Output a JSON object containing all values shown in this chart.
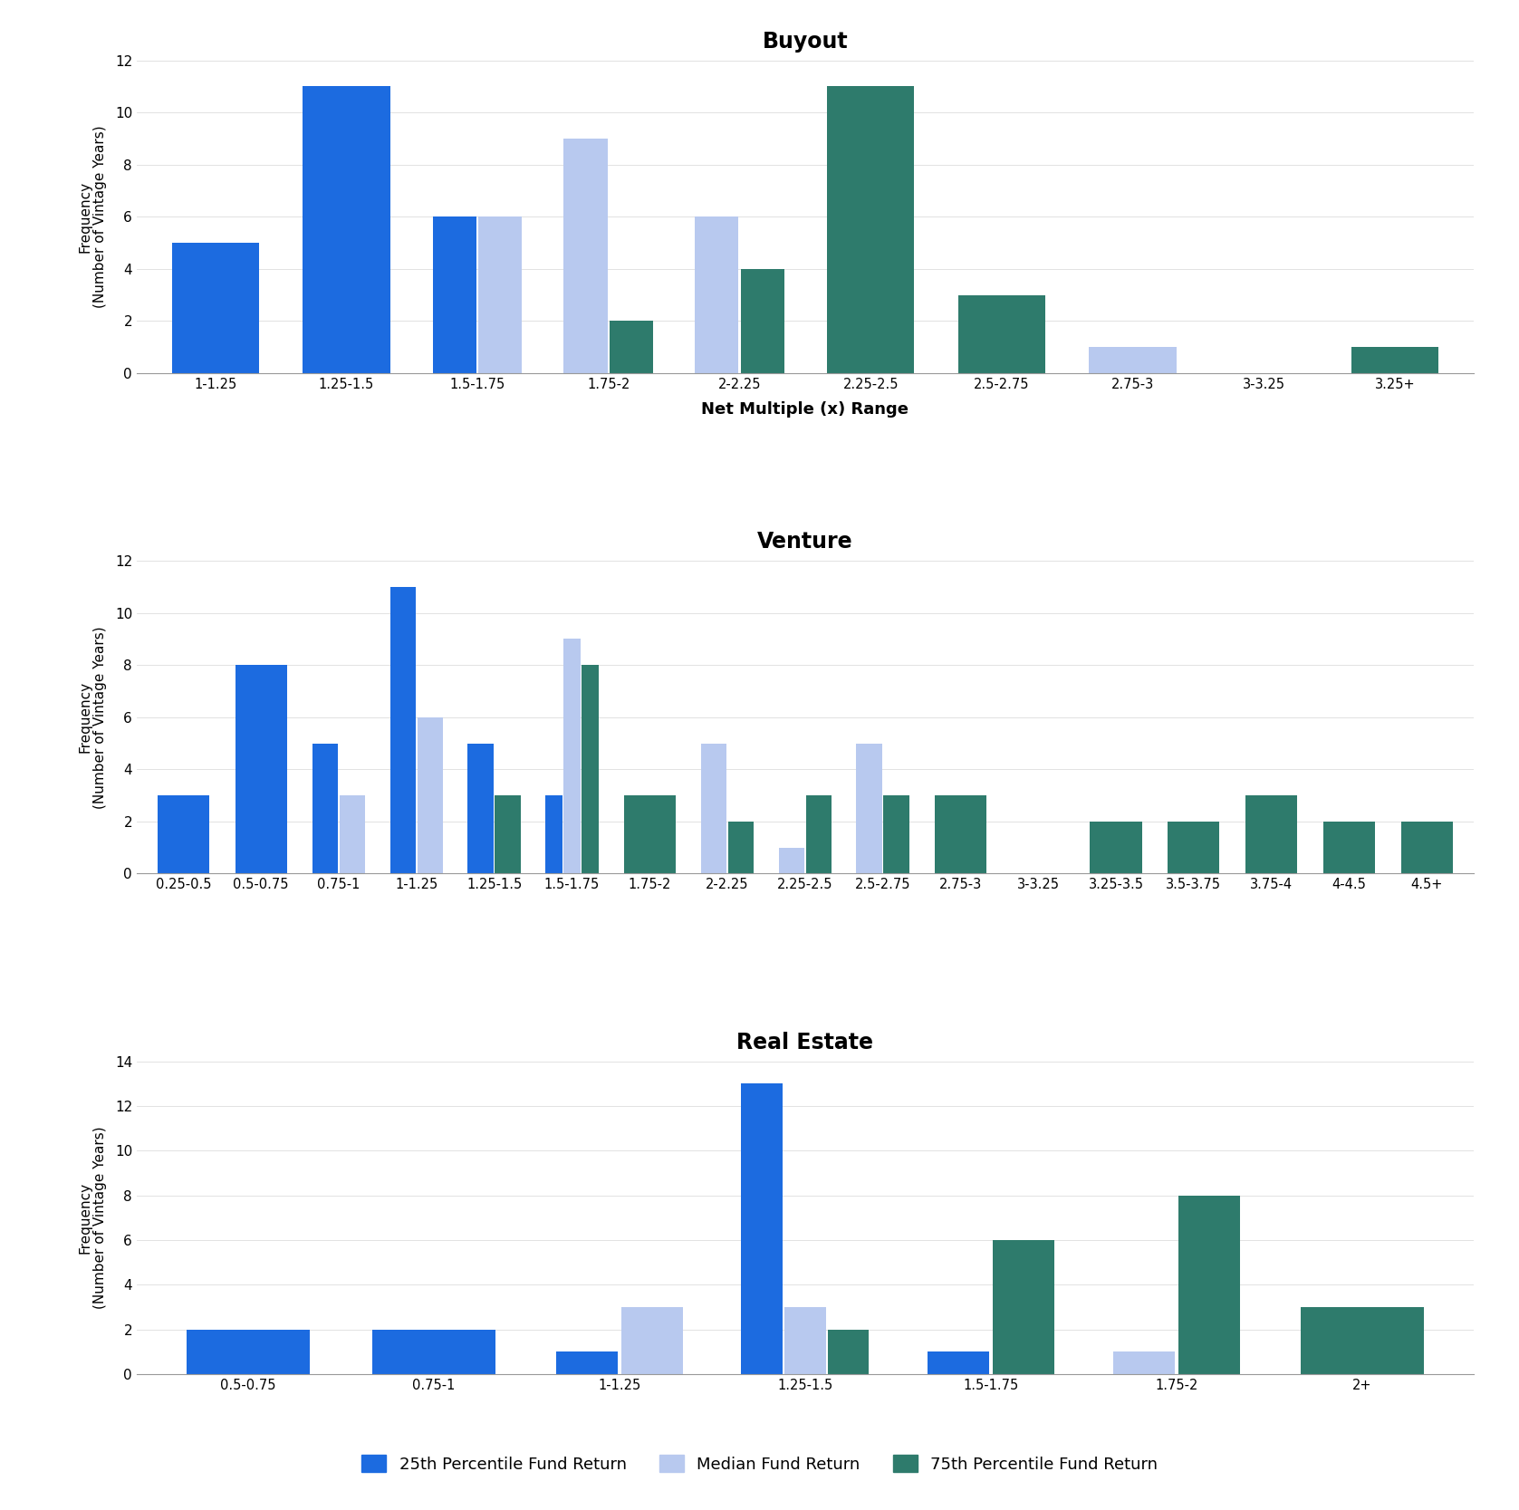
{
  "buyout": {
    "title": "Buyout",
    "all_bins": [
      "1-1.25",
      "1.25-1.5",
      "1.5-1.75",
      "1.75-2",
      "2-2.25",
      "2.25-2.5",
      "2.5-2.75",
      "2.75-3",
      "3-3.25",
      "3.25+"
    ],
    "p25_bins": [
      "1-1.25",
      "1.25-1.5",
      "1.5-1.75"
    ],
    "p25_vals": [
      5,
      11,
      6
    ],
    "median_bins": [
      "1.5-1.75",
      "1.75-2",
      "2-2.25",
      "2.75-3"
    ],
    "median_vals": [
      6,
      9,
      6,
      1
    ],
    "p75_bins": [
      "1.75-2",
      "2-2.25",
      "2.25-2.5",
      "2.5-2.75",
      "3.25+"
    ],
    "p75_vals": [
      2,
      4,
      11,
      3,
      1
    ],
    "ylim": [
      0,
      12
    ],
    "yticks": [
      0,
      2,
      4,
      6,
      8,
      10,
      12
    ]
  },
  "venture": {
    "title": "Venture",
    "all_bins": [
      "0.25-0.5",
      "0.5-0.75",
      "0.75-1",
      "1-1.25",
      "1.25-1.5",
      "1.5-1.75",
      "1.75-2",
      "2-2.25",
      "2.25-2.5",
      "2.5-2.75",
      "2.75-3",
      "3-3.25",
      "3.25-3.5",
      "3.5-3.75",
      "3.75-4",
      "4-4.5",
      "4.5+"
    ],
    "p25_bins": [
      "0.25-0.5",
      "0.5-0.75",
      "0.75-1",
      "1-1.25",
      "1.25-1.5",
      "1.5-1.75"
    ],
    "p25_vals": [
      3,
      8,
      5,
      11,
      5,
      3
    ],
    "median_bins": [
      "0.75-1",
      "1-1.25",
      "1.5-1.75",
      "2-2.25",
      "2.25-2.5",
      "2.5-2.75"
    ],
    "median_vals": [
      3,
      6,
      9,
      5,
      1,
      5
    ],
    "p75_bins": [
      "1.25-1.5",
      "1.5-1.75",
      "1.75-2",
      "2-2.25",
      "2.25-2.5",
      "2.5-2.75",
      "2.75-3",
      "3.25-3.5",
      "3.5-3.75",
      "3.75-4",
      "4-4.5",
      "4.5+"
    ],
    "p75_vals": [
      3,
      8,
      3,
      2,
      3,
      3,
      3,
      2,
      2,
      3,
      2,
      2
    ],
    "ylim": [
      0,
      12
    ],
    "yticks": [
      0,
      2,
      4,
      6,
      8,
      10,
      12
    ]
  },
  "realestate": {
    "title": "Real Estate",
    "all_bins": [
      "0.5-0.75",
      "0.75-1",
      "1-1.25",
      "1.25-1.5",
      "1.5-1.75",
      "1.75-2",
      "2+"
    ],
    "p25_bins": [
      "0.5-0.75",
      "0.75-1",
      "1-1.25",
      "1.25-1.5",
      "1.5-1.75"
    ],
    "p25_vals": [
      2,
      2,
      1,
      13,
      1
    ],
    "median_bins": [
      "1-1.25",
      "1.25-1.5",
      "1.75-2"
    ],
    "median_vals": [
      3,
      3,
      1
    ],
    "p75_bins": [
      "1.25-1.5",
      "1.5-1.75",
      "1.75-2",
      "2+"
    ],
    "p75_vals": [
      2,
      6,
      8,
      3
    ],
    "ylim": [
      0,
      14
    ],
    "yticks": [
      0,
      2,
      4,
      6,
      8,
      10,
      12,
      14
    ]
  },
  "shared_xlabel": "Net Multiple (x) Range",
  "shared_ylabel": "Frequency\n(Number of Vintage Years)",
  "colors": {
    "p25": "#1C6BE0",
    "median": "#B8C9EF",
    "p75": "#2E7B6C"
  },
  "legend_labels": {
    "p25": "25th Percentile Fund Return",
    "median": "Median Fund Return",
    "p75": "75th Percentile Fund Return"
  },
  "background_color": "#FFFFFF"
}
